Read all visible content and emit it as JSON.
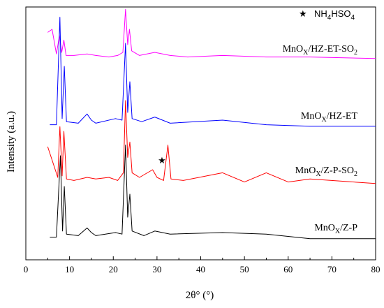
{
  "chart_data": {
    "type": "line",
    "title": "",
    "xlabel": "2θ° (°)",
    "ylabel": "Intensity (a.u.)",
    "xlim": [
      0,
      80
    ],
    "x_ticks": [
      "0",
      "10",
      "20",
      "30",
      "40",
      "50",
      "60",
      "70",
      "80"
    ],
    "y_ticks_labeled": false,
    "grid": false,
    "legend": {
      "marker": "★",
      "label": "NH4HSO4",
      "position": "top-right"
    },
    "marker_annotation": {
      "symbol": "★",
      "x": 32.5,
      "series": "MnOx/Z-P-SO2",
      "meaning": "NH4HSO4"
    },
    "series": [
      {
        "name": "MnOx/HZ-ET-SO2",
        "color": "#ff00ff",
        "points": [
          [
            5,
            0.18
          ],
          [
            6,
            0.2
          ],
          [
            7,
            0.04
          ],
          [
            7.7,
            0.16
          ],
          [
            8.2,
            0.05
          ],
          [
            8.7,
            0.13
          ],
          [
            9.2,
            0.03
          ],
          [
            11,
            0.03
          ],
          [
            14,
            0.04
          ],
          [
            16,
            0.03
          ],
          [
            19,
            0.02
          ],
          [
            21,
            0.03
          ],
          [
            22.2,
            0.05
          ],
          [
            22.8,
            0.33
          ],
          [
            23.3,
            0.1
          ],
          [
            23.7,
            0.2
          ],
          [
            24.2,
            0.06
          ],
          [
            26,
            0.03
          ],
          [
            29.5,
            0.05
          ],
          [
            33,
            0.03
          ],
          [
            37,
            0.02
          ],
          [
            45,
            0.03
          ],
          [
            55,
            0.02
          ],
          [
            65,
            0.02
          ],
          [
            80,
            0.01
          ]
        ]
      },
      {
        "name": "MnOx/HZ-ET",
        "color": "#0000ff",
        "points": [
          [
            5.5,
            0.02
          ],
          [
            7,
            0.02
          ],
          [
            7.8,
            0.72
          ],
          [
            8.3,
            0.06
          ],
          [
            8.8,
            0.4
          ],
          [
            9.3,
            0.04
          ],
          [
            12,
            0.03
          ],
          [
            14,
            0.09
          ],
          [
            15,
            0.05
          ],
          [
            16,
            0.03
          ],
          [
            20.5,
            0.06
          ],
          [
            22,
            0.05
          ],
          [
            22.8,
            0.55
          ],
          [
            23.3,
            0.1
          ],
          [
            23.8,
            0.3
          ],
          [
            24.3,
            0.06
          ],
          [
            26.5,
            0.04
          ],
          [
            29.5,
            0.07
          ],
          [
            33,
            0.03
          ],
          [
            45,
            0.05
          ],
          [
            55,
            0.02
          ],
          [
            65,
            0.01
          ],
          [
            80,
            0.01
          ]
        ]
      },
      {
        "name": "MnOx/Z-P-SO2",
        "color": "#ff0000",
        "points": [
          [
            5,
            0.25
          ],
          [
            6.5,
            0.12
          ],
          [
            7.3,
            0.05
          ],
          [
            7.8,
            0.38
          ],
          [
            8.3,
            0.06
          ],
          [
            8.7,
            0.35
          ],
          [
            9.3,
            0.04
          ],
          [
            11,
            0.03
          ],
          [
            14,
            0.05
          ],
          [
            16,
            0.04
          ],
          [
            19,
            0.05
          ],
          [
            21,
            0.03
          ],
          [
            22.3,
            0.08
          ],
          [
            22.8,
            0.55
          ],
          [
            23.3,
            0.18
          ],
          [
            23.8,
            0.28
          ],
          [
            24.3,
            0.08
          ],
          [
            26,
            0.05
          ],
          [
            29,
            0.1
          ],
          [
            30,
            0.05
          ],
          [
            31.5,
            0.03
          ],
          [
            32.5,
            0.26
          ],
          [
            33.2,
            0.04
          ],
          [
            36,
            0.03
          ],
          [
            45,
            0.08
          ],
          [
            50,
            0.02
          ],
          [
            55,
            0.08
          ],
          [
            60,
            0.02
          ],
          [
            65,
            0.04
          ],
          [
            80,
            0.01
          ]
        ]
      },
      {
        "name": "MnOx/Z-P",
        "color": "#000000",
        "points": [
          [
            5.5,
            0.02
          ],
          [
            7,
            0.02
          ],
          [
            7.9,
            0.55
          ],
          [
            8.4,
            0.06
          ],
          [
            8.8,
            0.35
          ],
          [
            9.3,
            0.04
          ],
          [
            12,
            0.03
          ],
          [
            14,
            0.08
          ],
          [
            15,
            0.05
          ],
          [
            16,
            0.03
          ],
          [
            20.5,
            0.05
          ],
          [
            22,
            0.04
          ],
          [
            22.8,
            0.62
          ],
          [
            23.3,
            0.15
          ],
          [
            23.8,
            0.3
          ],
          [
            24.3,
            0.06
          ],
          [
            27,
            0.03
          ],
          [
            29.5,
            0.06
          ],
          [
            33,
            0.04
          ],
          [
            45,
            0.05
          ],
          [
            55,
            0.04
          ],
          [
            65,
            0.01
          ],
          [
            80,
            0.01
          ]
        ]
      }
    ]
  }
}
